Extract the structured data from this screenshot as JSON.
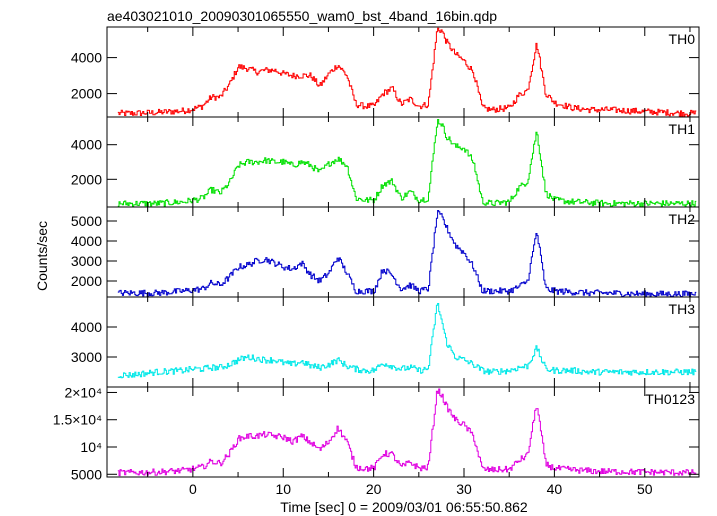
{
  "chart_data": {
    "type": "line",
    "title": "ae403021010_20090301065550_wam0_bst_4band_16bin.qdp",
    "xlabel": "Time [sec] 0 = 2009/03/01 06:55:50.862",
    "ylabel": "Counts/sec",
    "xlim": [
      -9.5,
      56
    ],
    "x_ticks": [
      0,
      10,
      20,
      30,
      40,
      50
    ],
    "grid": false,
    "panels": [
      {
        "name": "TH0",
        "color": "#ff0000",
        "ylim": [
          700,
          5700
        ],
        "y_ticks": [
          {
            "value": 2000,
            "label": "2000"
          },
          {
            "value": 4000,
            "label": "4000"
          }
        ],
        "x": [
          -7,
          -4,
          -1,
          0,
          1,
          2,
          3,
          4,
          5,
          6,
          7,
          8,
          9,
          10,
          11,
          12,
          13,
          14,
          15,
          16,
          17,
          18,
          19,
          20,
          21,
          22,
          23,
          24,
          25,
          26,
          27,
          27.5,
          28,
          29,
          30,
          31,
          32,
          33,
          35,
          36,
          37,
          38,
          39,
          40,
          42,
          44,
          46,
          50,
          55
        ],
        "values": [
          900,
          950,
          1050,
          1150,
          1300,
          1800,
          1800,
          2500,
          3500,
          3400,
          3200,
          3300,
          3300,
          3100,
          3000,
          3000,
          3000,
          2400,
          3100,
          3600,
          3000,
          1400,
          1300,
          1300,
          2000,
          2300,
          1400,
          1700,
          1300,
          1400,
          5600,
          5500,
          4900,
          4200,
          3800,
          3200,
          1200,
          1100,
          1200,
          1900,
          2200,
          4800,
          2000,
          1500,
          1200,
          1100,
          1100,
          1000,
          900
        ]
      },
      {
        "name": "TH1",
        "color": "#00e000",
        "ylim": [
          400,
          5600
        ],
        "y_ticks": [
          {
            "value": 2000,
            "label": "2000"
          },
          {
            "value": 4000,
            "label": "4000"
          }
        ],
        "x": [
          -7,
          -4,
          -1,
          0,
          1,
          2,
          3,
          4,
          5,
          6,
          7,
          8,
          9,
          10,
          11,
          12,
          13,
          14,
          15,
          16,
          17,
          18,
          19,
          20,
          21,
          22,
          23,
          24,
          25,
          26,
          27,
          27.5,
          28,
          29,
          30,
          31,
          32,
          33,
          35,
          36,
          37,
          38,
          39,
          40,
          42,
          44,
          46,
          50,
          55
        ],
        "values": [
          600,
          600,
          700,
          800,
          900,
          1400,
          1200,
          1800,
          2800,
          3000,
          3000,
          3100,
          3000,
          3000,
          2800,
          3000,
          2800,
          2400,
          2900,
          3200,
          2800,
          900,
          800,
          800,
          1700,
          1900,
          900,
          1300,
          800,
          900,
          5400,
          5200,
          4500,
          3900,
          3800,
          3000,
          700,
          600,
          700,
          1500,
          1900,
          4800,
          1200,
          800,
          700,
          650,
          600,
          600,
          600
        ]
      },
      {
        "name": "TH2",
        "color": "#0000cc",
        "ylim": [
          1200,
          5700
        ],
        "y_ticks": [
          {
            "value": 2000,
            "label": "2000"
          },
          {
            "value": 3000,
            "label": "3000"
          },
          {
            "value": 4000,
            "label": "4000"
          },
          {
            "value": 5000,
            "label": "5000"
          }
        ],
        "x": [
          -7,
          -4,
          -1,
          0,
          1,
          2,
          3,
          4,
          5,
          6,
          7,
          8,
          9,
          10,
          11,
          12,
          13,
          14,
          15,
          16,
          17,
          18,
          19,
          20,
          21,
          22,
          23,
          24,
          25,
          26,
          27,
          27.5,
          28,
          29,
          30,
          31,
          32,
          33,
          35,
          36,
          37,
          38,
          39,
          40,
          42,
          44,
          46,
          50,
          55
        ],
        "values": [
          1400,
          1400,
          1500,
          1550,
          1600,
          1900,
          1800,
          2200,
          2700,
          2800,
          3000,
          3100,
          2900,
          2700,
          2600,
          2900,
          2300,
          2000,
          2400,
          3200,
          2400,
          1500,
          1500,
          1500,
          2600,
          2300,
          1600,
          1800,
          1500,
          1600,
          5400,
          5200,
          4700,
          3800,
          3400,
          2700,
          1500,
          1500,
          1500,
          1700,
          2000,
          4500,
          1600,
          1500,
          1450,
          1400,
          1400,
          1350,
          1350
        ]
      },
      {
        "name": "TH3",
        "color": "#00e8e8",
        "ylim": [
          2000,
          5000
        ],
        "y_ticks": [
          {
            "value": 3000,
            "label": "3000"
          },
          {
            "value": 4000,
            "label": "4000"
          }
        ],
        "x": [
          -7,
          -4,
          -1,
          0,
          1,
          2,
          3,
          4,
          5,
          6,
          7,
          8,
          9,
          10,
          11,
          12,
          13,
          14,
          15,
          16,
          17,
          18,
          19,
          20,
          21,
          22,
          23,
          24,
          25,
          26,
          27,
          27.5,
          28,
          29,
          30,
          31,
          32,
          33,
          35,
          36,
          37,
          38,
          39,
          40,
          42,
          44,
          46,
          50,
          55
        ],
        "values": [
          2400,
          2500,
          2550,
          2600,
          2600,
          2650,
          2650,
          2750,
          2900,
          3000,
          2950,
          2900,
          2900,
          2800,
          2750,
          2850,
          2700,
          2650,
          2750,
          2900,
          2700,
          2600,
          2550,
          2550,
          2800,
          2700,
          2600,
          2650,
          2550,
          2600,
          4800,
          4200,
          3500,
          3000,
          2900,
          2750,
          2550,
          2500,
          2550,
          2650,
          2700,
          3300,
          2600,
          2550,
          2550,
          2500,
          2500,
          2500,
          2500
        ]
      },
      {
        "name": "TH0123",
        "color": "#e000e0",
        "ylim": [
          4500,
          21000
        ],
        "y_ticks": [
          {
            "value": 5000,
            "label": "5000"
          },
          {
            "value": 10000,
            "label": "10⁴"
          },
          {
            "value": 15000,
            "label": "1.5×10⁴"
          },
          {
            "value": 20000,
            "label": "2×10⁴"
          }
        ],
        "x": [
          -7,
          -4,
          -1,
          0,
          1,
          2,
          3,
          4,
          5,
          6,
          7,
          8,
          9,
          10,
          11,
          12,
          13,
          14,
          15,
          16,
          17,
          18,
          19,
          20,
          21,
          22,
          23,
          24,
          25,
          26,
          27,
          27.5,
          28,
          29,
          30,
          31,
          32,
          33,
          35,
          36,
          37,
          38,
          39,
          40,
          42,
          44,
          46,
          50,
          55
        ],
        "values": [
          5300,
          5400,
          5700,
          6000,
          6300,
          7400,
          7000,
          8800,
          11500,
          12000,
          12000,
          12300,
          12000,
          11800,
          11000,
          12000,
          10800,
          9500,
          11000,
          13500,
          11000,
          6300,
          6100,
          6100,
          8800,
          8700,
          6300,
          7200,
          6100,
          6300,
          20500,
          19500,
          17500,
          15000,
          14000,
          12000,
          5900,
          5800,
          5900,
          7500,
          8500,
          18000,
          6800,
          6100,
          5800,
          5600,
          5500,
          5400,
          5300
        ]
      }
    ]
  }
}
